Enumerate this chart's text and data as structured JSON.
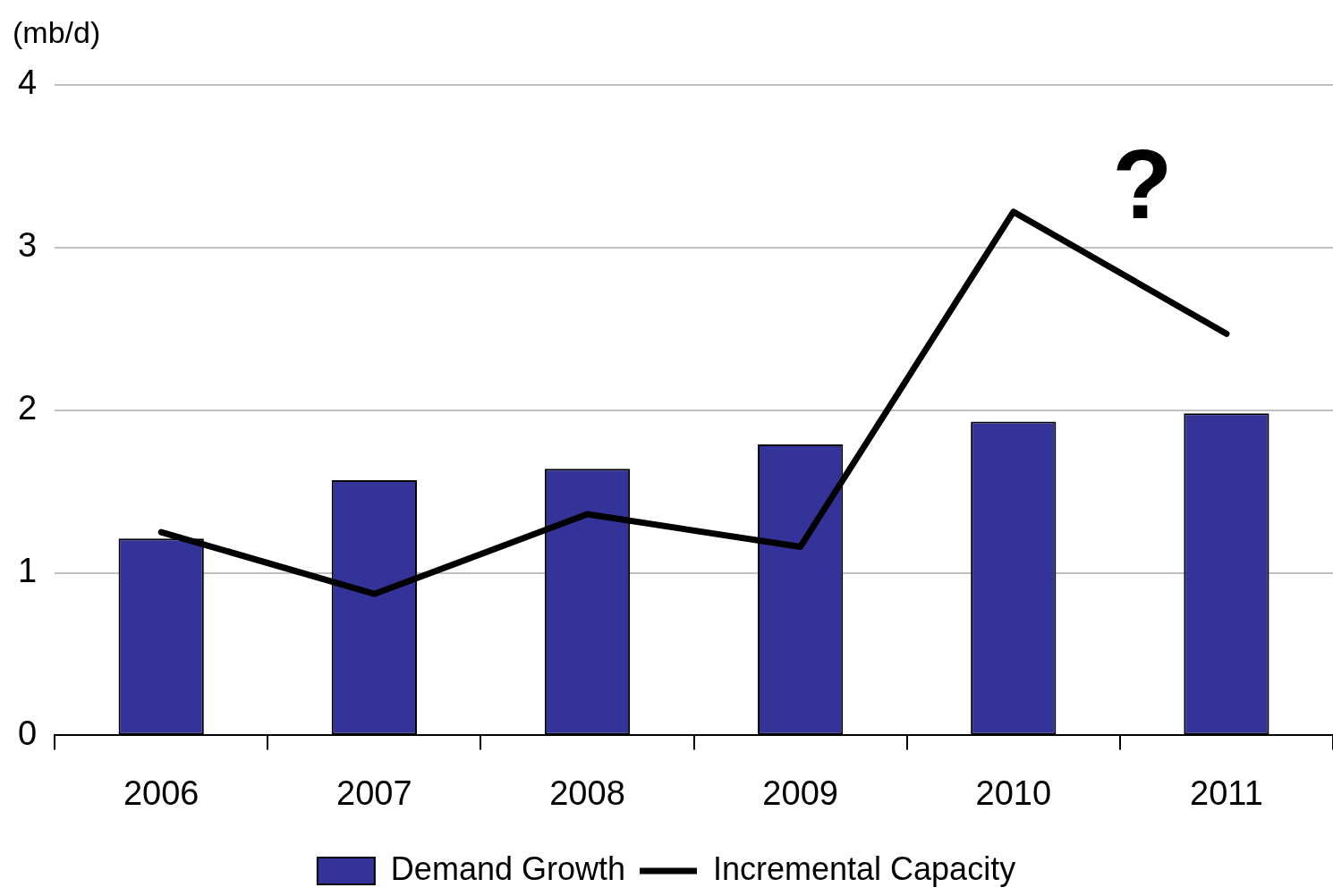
{
  "chart_data": {
    "type": "bar",
    "ylabel": "(mb/d)",
    "categories": [
      "2006",
      "2007",
      "2008",
      "2009",
      "2010",
      "2011"
    ],
    "series": [
      {
        "name": "Demand Growth",
        "color": "#333399",
        "values": [
          1.21,
          1.57,
          1.64,
          1.79,
          1.93,
          1.98
        ]
      },
      {
        "name": "Incremental Capacity",
        "type": "line",
        "color": "#000000",
        "values": [
          1.25,
          0.87,
          1.36,
          1.16,
          3.22,
          2.47
        ]
      }
    ],
    "ylim": [
      0,
      4
    ],
    "yticks": [
      0,
      1,
      2,
      3,
      4
    ],
    "grid": "y",
    "legend": "bottom",
    "marker": "none",
    "line_style": "solid",
    "annotations": [
      "?"
    ]
  }
}
